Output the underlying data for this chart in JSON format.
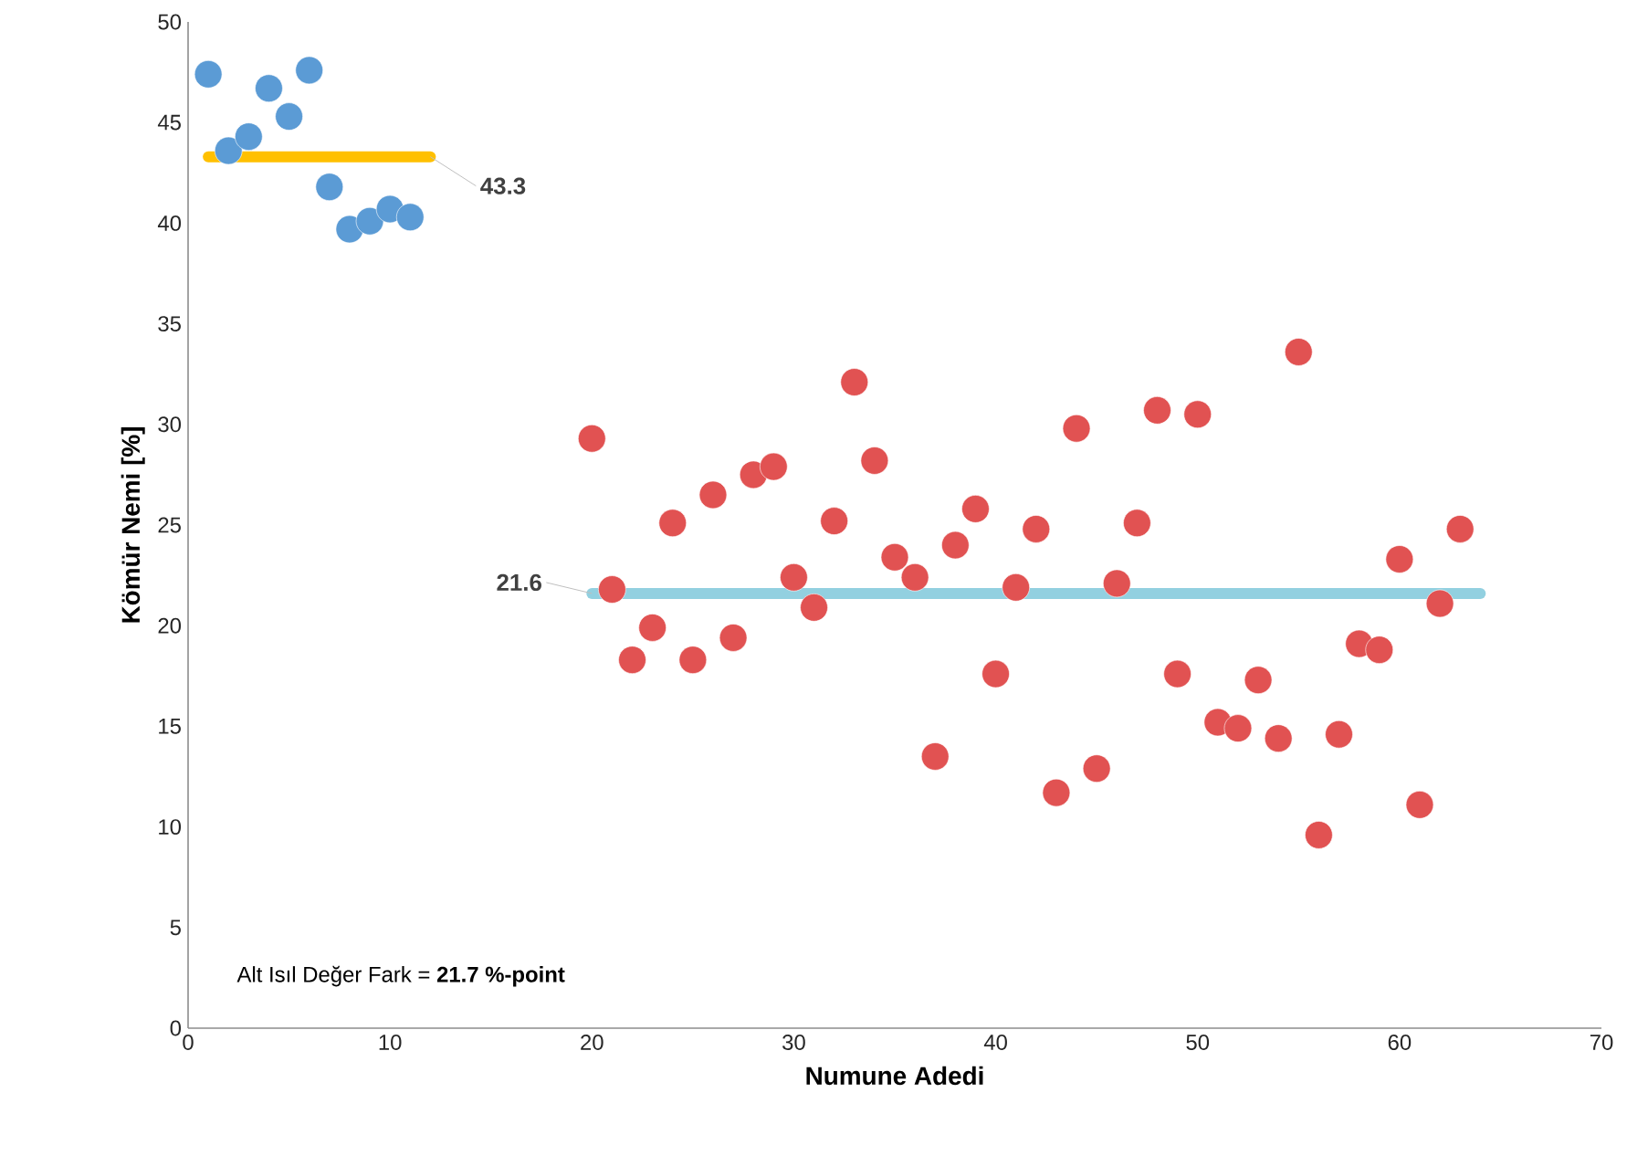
{
  "chart_data": {
    "type": "scatter",
    "xlabel": "Numune Adedi",
    "ylabel": "Kömür Nemi [%]",
    "xlim": [
      0,
      70
    ],
    "xticks": [
      0,
      10,
      20,
      30,
      40,
      50,
      60,
      70
    ],
    "ylim": [
      0,
      50
    ],
    "yticks": [
      0,
      5,
      10,
      15,
      20,
      25,
      30,
      35,
      40,
      45,
      50
    ],
    "grid": false,
    "series": [
      {
        "marker": "circle",
        "color": "#5b9bd5",
        "x": [
          1,
          2,
          3,
          4,
          5,
          6,
          7,
          8,
          9,
          10,
          11
        ],
        "values": [
          47.4,
          43.6,
          44.3,
          46.7,
          45.3,
          47.6,
          41.8,
          39.7,
          40.1,
          40.7,
          40.3
        ]
      },
      {
        "marker": "circle",
        "color": "#e15252",
        "x": [
          20,
          21,
          22,
          23,
          24,
          25,
          26,
          27,
          28,
          29,
          30,
          31,
          32,
          33,
          34,
          35,
          36,
          37,
          38,
          39,
          40,
          41,
          42,
          43,
          44,
          45,
          46,
          47,
          48,
          49,
          50,
          51,
          52,
          53,
          54,
          55,
          56,
          57,
          58,
          59,
          60,
          61,
          62,
          63
        ],
        "values": [
          29.3,
          21.8,
          18.3,
          19.9,
          25.1,
          18.3,
          26.5,
          19.4,
          27.5,
          27.9,
          22.4,
          20.9,
          25.2,
          32.1,
          28.2,
          23.4,
          22.4,
          13.5,
          24.0,
          25.8,
          17.6,
          21.9,
          24.8,
          11.7,
          29.8,
          12.9,
          22.1,
          25.1,
          30.7,
          17.6,
          30.5,
          15.2,
          14.9,
          17.3,
          14.4,
          33.6,
          9.6,
          14.6,
          19.1,
          18.8,
          23.3,
          11.1,
          21.1,
          24.8
        ]
      },
      {
        "type": "line",
        "marker": "none",
        "color": "#ffc000",
        "x": [
          1,
          12
        ],
        "values": [
          43.3,
          43.3
        ]
      },
      {
        "type": "line",
        "marker": "none",
        "color": "#92d0e0",
        "x": [
          20,
          64
        ],
        "values": [
          21.6,
          21.6
        ]
      }
    ],
    "annotations": [
      {
        "text": "43.3",
        "x": 12,
        "y": 43.3
      },
      {
        "text": "21.6",
        "x": 20,
        "y": 21.6
      },
      "Alt Isıl Değer Fark = **21.7 %-point**"
    ]
  }
}
